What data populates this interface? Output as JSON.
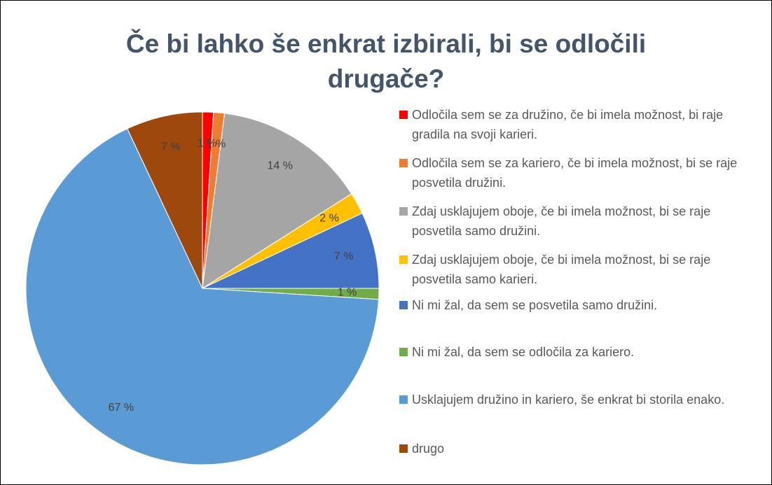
{
  "chart_data": {
    "type": "pie",
    "title": [
      "Če bi lahko še enkrat izbirali, bi se odločili",
      "drugače?"
    ],
    "categories": [
      "Odločila sem se za družino, če bi imela možnost, bi raje gradila na svoji karieri.",
      "Odločila sem se za kariero, če bi imela možnost, bi se raje posvetila družini.",
      "Zdaj usklajujem oboje, če bi imela možnost, bi se raje posvetila samo družini.",
      "Zdaj usklajujem oboje, če bi imela možnost, bi se raje posvetila samo karieri.",
      "Ni mi žal, da sem se posvetila samo družini.",
      "Ni mi žal, da sem se odločila za kariero.",
      "Usklajujem družino in kariero, še enkrat bi storila enako.",
      "drugo"
    ],
    "values": [
      1,
      1,
      14,
      2,
      7,
      1,
      67,
      7
    ],
    "value_labels": [
      "1 %",
      "1 %",
      "14 %",
      "2 %",
      "7 %",
      "1 %",
      "67 %",
      "7 %"
    ],
    "colors": [
      "#ff0000",
      "#ed7d31",
      "#a5a5a5",
      "#ffc000",
      "#4472c4",
      "#70ad47",
      "#5b9bd5",
      "#9e480e"
    ],
    "legend": "right"
  }
}
